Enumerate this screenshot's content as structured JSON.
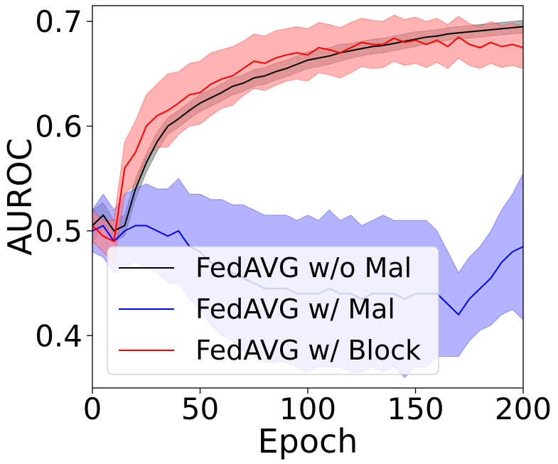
{
  "chart_data": {
    "type": "line",
    "xlabel": "Epoch",
    "ylabel": "AUROC",
    "xlim": [
      0,
      200
    ],
    "ylim": [
      0.35,
      0.715
    ],
    "x_ticks": [
      0,
      50,
      100,
      150,
      200
    ],
    "x_tick_labels": [
      "0",
      "50",
      "100",
      "150",
      "200"
    ],
    "y_ticks": [
      0.4,
      0.5,
      0.6,
      0.7
    ],
    "y_tick_labels": [
      "0.4",
      "0.5",
      "0.6",
      "0.7"
    ],
    "grid": false,
    "legend_position": "lower-left",
    "x": [
      0,
      5,
      10,
      15,
      20,
      25,
      30,
      35,
      40,
      45,
      50,
      55,
      60,
      65,
      70,
      75,
      80,
      85,
      90,
      95,
      100,
      105,
      110,
      115,
      120,
      125,
      130,
      135,
      140,
      145,
      150,
      155,
      160,
      165,
      170,
      175,
      180,
      185,
      190,
      195,
      200
    ],
    "series": [
      {
        "name": "FedAVG w/o Mal",
        "color": "#000000",
        "band_color": "#808080",
        "values": [
          0.505,
          0.515,
          0.5,
          0.505,
          0.54,
          0.565,
          0.585,
          0.6,
          0.607,
          0.615,
          0.622,
          0.627,
          0.632,
          0.638,
          0.641,
          0.646,
          0.648,
          0.652,
          0.655,
          0.659,
          0.663,
          0.665,
          0.667,
          0.67,
          0.672,
          0.674,
          0.676,
          0.677,
          0.679,
          0.681,
          0.683,
          0.685,
          0.686,
          0.688,
          0.689,
          0.69,
          0.691,
          0.692,
          0.693,
          0.694,
          0.695
        ],
        "band": [
          0.015,
          0.012,
          0.01,
          0.01,
          0.01,
          0.009,
          0.009,
          0.008,
          0.008,
          0.008,
          0.008,
          0.008,
          0.008,
          0.008,
          0.008,
          0.008,
          0.008,
          0.008,
          0.008,
          0.008,
          0.008,
          0.008,
          0.008,
          0.008,
          0.007,
          0.007,
          0.007,
          0.007,
          0.007,
          0.007,
          0.007,
          0.006,
          0.006,
          0.006,
          0.006,
          0.006,
          0.006,
          0.006,
          0.006,
          0.006,
          0.006
        ]
      },
      {
        "name": "FedAVG w/ Mal",
        "color": "#0000ff",
        "band_color": "#8080ff",
        "values": [
          0.5,
          0.505,
          0.49,
          0.5,
          0.505,
          0.505,
          0.5,
          0.495,
          0.5,
          0.485,
          0.48,
          0.47,
          0.465,
          0.46,
          0.455,
          0.45,
          0.445,
          0.445,
          0.445,
          0.44,
          0.44,
          0.44,
          0.445,
          0.44,
          0.44,
          0.435,
          0.44,
          0.44,
          0.44,
          0.435,
          0.44,
          0.44,
          0.44,
          0.43,
          0.42,
          0.435,
          0.445,
          0.455,
          0.47,
          0.48,
          0.485
        ],
        "band": [
          0.02,
          0.03,
          0.03,
          0.035,
          0.035,
          0.04,
          0.04,
          0.045,
          0.05,
          0.05,
          0.055,
          0.06,
          0.065,
          0.065,
          0.07,
          0.07,
          0.07,
          0.07,
          0.07,
          0.07,
          0.075,
          0.07,
          0.075,
          0.07,
          0.075,
          0.07,
          0.07,
          0.075,
          0.07,
          0.075,
          0.07,
          0.07,
          0.06,
          0.05,
          0.04,
          0.04,
          0.04,
          0.045,
          0.05,
          0.055,
          0.07
        ]
      },
      {
        "name": "FedAVG w/ Block",
        "color": "#ff0000",
        "band_color": "#ff8080",
        "values": [
          0.505,
          0.495,
          0.49,
          0.56,
          0.575,
          0.6,
          0.61,
          0.615,
          0.622,
          0.63,
          0.632,
          0.64,
          0.645,
          0.648,
          0.655,
          0.662,
          0.66,
          0.665,
          0.668,
          0.67,
          0.668,
          0.675,
          0.673,
          0.67,
          0.675,
          0.68,
          0.678,
          0.678,
          0.684,
          0.68,
          0.682,
          0.678,
          0.682,
          0.676,
          0.685,
          0.678,
          0.675,
          0.68,
          0.676,
          0.678,
          0.675
        ],
        "band": [
          0.015,
          0.015,
          0.02,
          0.025,
          0.03,
          0.03,
          0.03,
          0.035,
          0.03,
          0.03,
          0.03,
          0.03,
          0.028,
          0.028,
          0.026,
          0.026,
          0.026,
          0.026,
          0.025,
          0.025,
          0.025,
          0.024,
          0.024,
          0.024,
          0.024,
          0.023,
          0.023,
          0.022,
          0.022,
          0.022,
          0.022,
          0.022,
          0.021,
          0.021,
          0.02,
          0.02,
          0.02,
          0.02,
          0.02,
          0.02,
          0.02
        ]
      }
    ]
  }
}
